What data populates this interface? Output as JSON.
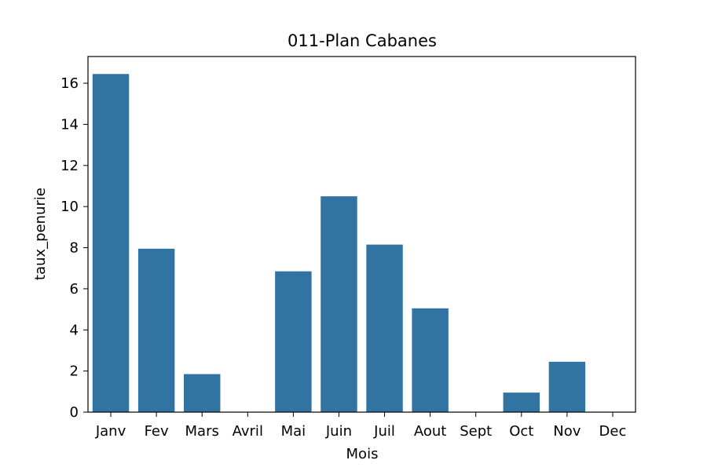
{
  "chart_data": {
    "type": "bar",
    "title": "011-Plan Cabanes",
    "xlabel": "Mois",
    "ylabel": "taux_penurie",
    "categories": [
      "Janv",
      "Fev",
      "Mars",
      "Avril",
      "Mai",
      "Juin",
      "Juil",
      "Aout",
      "Sept",
      "Oct",
      "Nov",
      "Dec"
    ],
    "values": [
      16.45,
      7.95,
      1.85,
      0,
      6.85,
      10.5,
      8.15,
      5.05,
      0,
      0.95,
      2.45,
      0
    ],
    "ylim": [
      0,
      17.3
    ],
    "yticks": [
      0,
      2,
      4,
      6,
      8,
      10,
      12,
      14,
      16
    ],
    "grid": false,
    "bar_color": "#3274a1"
  }
}
